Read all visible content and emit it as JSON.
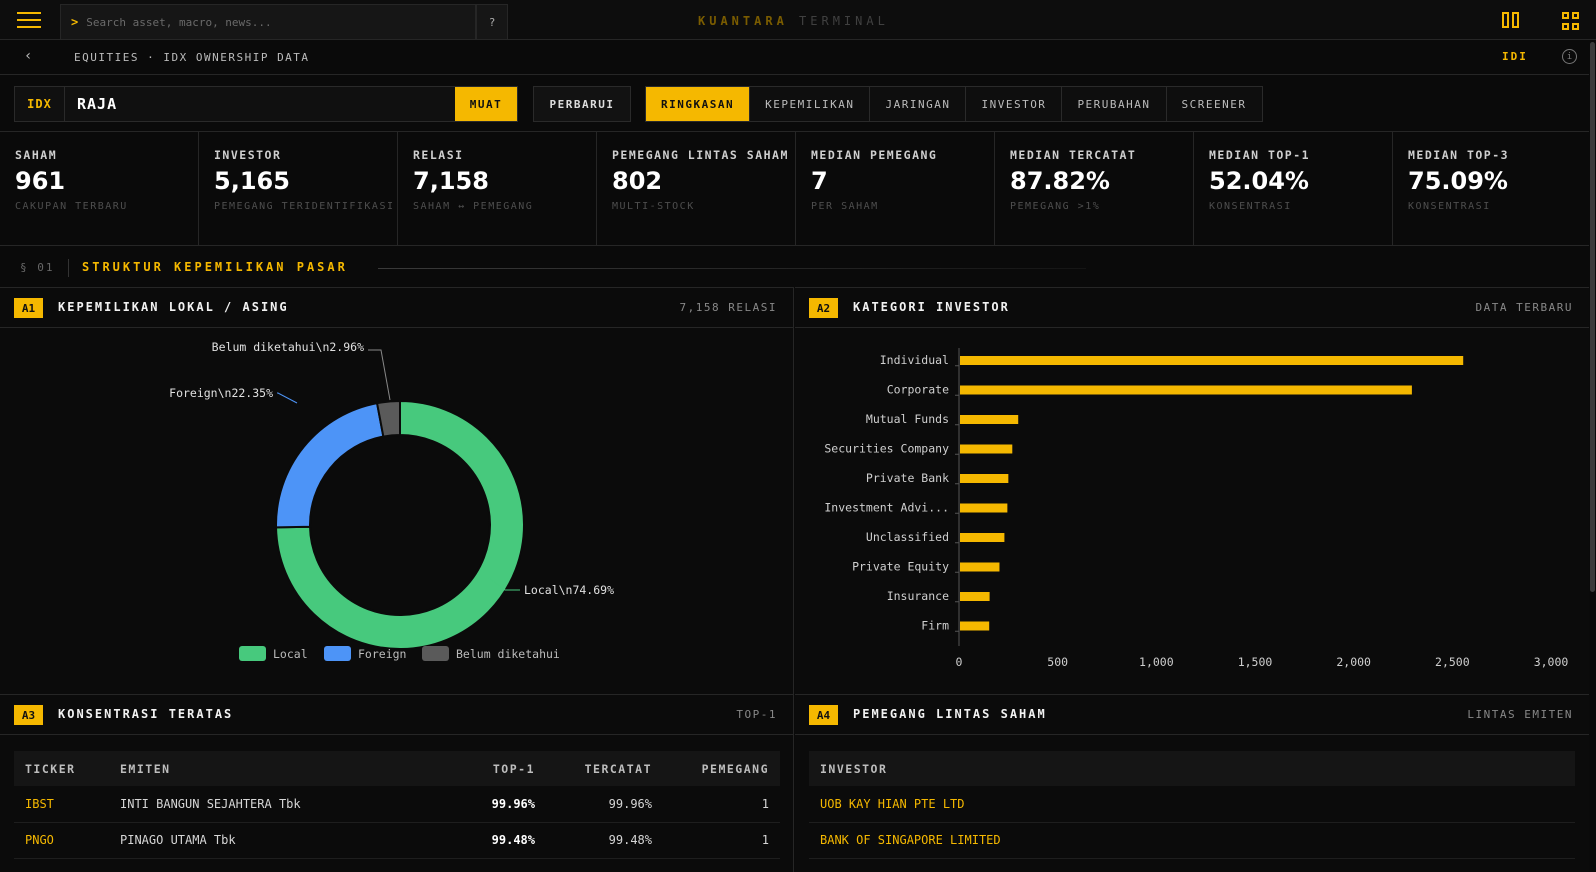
{
  "topbar": {
    "search_prompt": ">",
    "search_placeholder": "Search asset, macro, news...",
    "help_label": "?",
    "brand_primary": "KUANTARA",
    "brand_secondary": "TERMINAL"
  },
  "breadcrumb": {
    "back_label": "‹",
    "path": "EQUITIES · IDX OWNERSHIP DATA",
    "market_tag": "IDI",
    "info_label": "i"
  },
  "toolbar": {
    "market": "IDX",
    "ticker_value": "RAJA",
    "load_label": "MUAT",
    "refresh_label": "PERBARUI",
    "tabs": [
      {
        "label": "RINGKASAN",
        "active": true
      },
      {
        "label": "KEPEMILIKAN"
      },
      {
        "label": "JARINGAN"
      },
      {
        "label": "INVESTOR"
      },
      {
        "label": "PERUBAHAN"
      },
      {
        "label": "SCREENER"
      }
    ]
  },
  "stats": [
    {
      "label": "SAHAM",
      "value": "961",
      "sub": "CAKUPAN TERBARU"
    },
    {
      "label": "INVESTOR",
      "value": "5,165",
      "sub": "PEMEGANG TERIDENTIFIKASI"
    },
    {
      "label": "RELASI",
      "value": "7,158",
      "sub": "SAHAM ↔ PEMEGANG"
    },
    {
      "label": "PEMEGANG LINTAS SAHAM",
      "value": "802",
      "sub": "MULTI-STOCK"
    },
    {
      "label": "MEDIAN PEMEGANG",
      "value": "7",
      "sub": "PER SAHAM"
    },
    {
      "label": "MEDIAN TERCATAT",
      "value": "87.82%",
      "sub": "PEMEGANG >1%"
    },
    {
      "label": "MEDIAN TOP-1",
      "value": "52.04%",
      "sub": "KONSENTRASI"
    },
    {
      "label": "MEDIAN TOP-3",
      "value": "75.09%",
      "sub": "KONSENTRASI"
    }
  ],
  "section": {
    "num": "§ 01",
    "title": "STRUKTUR KEPEMILIKAN PASAR"
  },
  "panels": {
    "a1": {
      "badge": "A1",
      "title": "KEPEMILIKAN LOKAL / ASING",
      "meta": "7,158 RELASI"
    },
    "a2": {
      "badge": "A2",
      "title": "KATEGORI INVESTOR",
      "meta": "DATA TERBARU"
    },
    "a3": {
      "badge": "A3",
      "title": "KONSENTRASI TERATAS",
      "meta": "TOP-1"
    },
    "a4": {
      "badge": "A4",
      "title": "PEMEGANG LINTAS SAHAM",
      "meta": "LINTAS EMITEN"
    }
  },
  "chart_data": [
    {
      "type": "pie",
      "slices": [
        {
          "name": "Local",
          "value": 74.69,
          "label": "Local\\n74.69%",
          "color": "#47c97d"
        },
        {
          "name": "Foreign",
          "value": 22.35,
          "label": "Foreign\\n22.35%",
          "color": "#4d94f7"
        },
        {
          "name": "Belum diketahui",
          "value": 2.96,
          "label": "Belum diketahui\\n2.96%",
          "color": "#5a5a5a"
        }
      ],
      "legend": [
        "Local",
        "Foreign",
        "Belum diketahui"
      ],
      "legend_position": "bottom"
    },
    {
      "type": "bar",
      "orientation": "horizontal",
      "categories": [
        "Individual",
        "Corporate",
        "Mutual Funds",
        "Securities Company",
        "Private Bank",
        "Investment Advi...",
        "Unclassified",
        "Private Equity",
        "Insurance",
        "Firm"
      ],
      "values": [
        2550,
        2290,
        295,
        265,
        245,
        240,
        225,
        200,
        150,
        148
      ],
      "xlim": [
        0,
        3000
      ],
      "xticks": [
        "0",
        "500",
        "1,000",
        "1,500",
        "2,000",
        "2,500",
        "3,000"
      ],
      "color": "#f5b800"
    }
  ],
  "table_a3": {
    "headers": [
      "TICKER",
      "EMITEN",
      "TOP-1",
      "TERCATAT",
      "PEMEGANG"
    ],
    "rows": [
      {
        "ticker": "IBST",
        "emiten": "INTI BANGUN SEJAHTERA Tbk",
        "top1": "99.96%",
        "tercatat": "99.96%",
        "pemegang": "1"
      },
      {
        "ticker": "PNGO",
        "emiten": "PINAGO UTAMA Tbk",
        "top1": "99.48%",
        "tercatat": "99.48%",
        "pemegang": "1"
      }
    ]
  },
  "table_a4": {
    "headers": [
      "INVESTOR"
    ],
    "rows": [
      {
        "investor": "UOB KAY HIAN PTE LTD"
      },
      {
        "investor": "BANK OF SINGAPORE LIMITED"
      }
    ]
  }
}
